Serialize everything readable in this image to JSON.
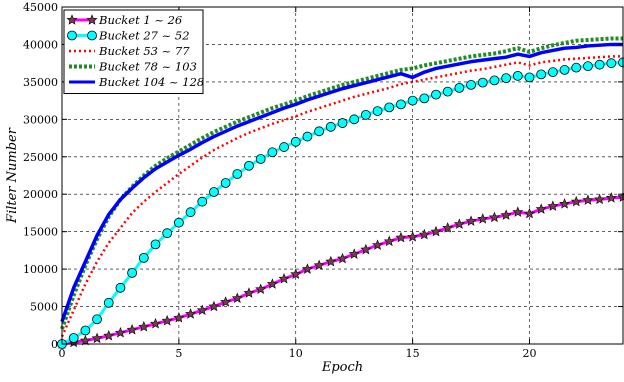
{
  "chart_data": {
    "type": "line",
    "title": "",
    "xlabel": "Epoch",
    "ylabel": "Filter Number",
    "xlim": [
      0,
      24
    ],
    "ylim": [
      0,
      45000
    ],
    "xticks": [
      0,
      5,
      10,
      15,
      20
    ],
    "xtick_labels": [
      "0",
      "5",
      "10",
      "15",
      "20"
    ],
    "yticks": [
      0,
      5000,
      10000,
      15000,
      20000,
      25000,
      30000,
      35000,
      40000,
      45000
    ],
    "ytick_labels": [
      "0",
      "5000",
      "10000",
      "15000",
      "20000",
      "25000",
      "30000",
      "35000",
      "40000",
      "45000"
    ],
    "grid": true,
    "legend_position": "upper-left",
    "x": [
      0,
      0.5,
      1,
      1.5,
      2,
      2.5,
      3,
      3.5,
      4,
      4.5,
      5,
      5.5,
      6,
      6.5,
      7,
      7.5,
      8,
      8.5,
      9,
      9.5,
      10,
      10.5,
      11,
      11.5,
      12,
      12.5,
      13,
      13.5,
      14,
      14.5,
      15,
      15.5,
      16,
      16.5,
      17,
      17.5,
      18,
      18.5,
      19,
      19.5,
      20,
      20.5,
      21,
      21.5,
      22,
      22.5,
      23,
      23.5,
      24
    ],
    "series": [
      {
        "name": "Bucket 1 ~ 26",
        "color": "#ff00ff",
        "style": "solid",
        "marker": "star",
        "marker_color": "#7a3a55",
        "values": [
          0,
          200,
          450,
          750,
          1100,
          1500,
          1900,
          2300,
          2700,
          3100,
          3500,
          4000,
          4500,
          5000,
          5600,
          6100,
          6800,
          7300,
          8000,
          8700,
          9300,
          10000,
          10500,
          11000,
          11400,
          12000,
          12600,
          13200,
          13700,
          14200,
          14300,
          14600,
          15000,
          15500,
          16000,
          16400,
          16700,
          16900,
          17200,
          17600,
          17400,
          18000,
          18400,
          18700,
          19000,
          19200,
          19300,
          19500,
          19600
        ]
      },
      {
        "name": "Bucket 27 ~ 52",
        "color": "#00ffff",
        "style": "solid",
        "marker": "circle",
        "marker_color": "#33cccc",
        "values": [
          0,
          800,
          1800,
          3300,
          5500,
          7500,
          9500,
          11500,
          13300,
          14800,
          16200,
          17600,
          19000,
          20300,
          21500,
          22700,
          23800,
          24700,
          25600,
          26300,
          27000,
          27700,
          28400,
          29000,
          29500,
          30000,
          30600,
          31100,
          31600,
          32000,
          32500,
          32800,
          33300,
          33700,
          34200,
          34600,
          34900,
          35200,
          35500,
          35800,
          35600,
          36000,
          36300,
          36600,
          36900,
          37100,
          37300,
          37500,
          37600
        ]
      },
      {
        "name": "Bucket 53 ~ 77",
        "color": "#ff0000",
        "style": "dotted",
        "marker": "none",
        "values": [
          1000,
          4500,
          8000,
          11000,
          13500,
          15500,
          17500,
          19000,
          20300,
          21500,
          22700,
          23800,
          24900,
          25900,
          26700,
          27500,
          28200,
          28800,
          29400,
          29900,
          30400,
          31000,
          31500,
          32000,
          32500,
          33000,
          33400,
          33800,
          34200,
          34700,
          35000,
          35300,
          35600,
          35900,
          36200,
          36500,
          36700,
          37000,
          37300,
          37600,
          37200,
          37600,
          37800,
          38000,
          38100,
          38200,
          38300,
          38400,
          38400
        ]
      },
      {
        "name": "Bucket 78 ~ 103",
        "color": "#228b22",
        "style": "dotted",
        "marker": "none",
        "values": [
          2000,
          6500,
          10500,
          14000,
          17000,
          19300,
          21000,
          22500,
          23800,
          24800,
          25700,
          26600,
          27500,
          28300,
          29000,
          29700,
          30300,
          30900,
          31500,
          32000,
          32500,
          33100,
          33600,
          34100,
          34600,
          35000,
          35400,
          35800,
          36200,
          36600,
          36800,
          37200,
          37500,
          37800,
          38100,
          38400,
          38600,
          38800,
          39100,
          39500,
          39000,
          39500,
          39900,
          40200,
          40500,
          40600,
          40700,
          40800,
          40800
        ]
      },
      {
        "name": "Bucket 104 ~ 128",
        "color": "#0000ff",
        "style": "solid",
        "marker": "none",
        "values": [
          3000,
          7500,
          11000,
          14500,
          17300,
          19300,
          20800,
          22200,
          23400,
          24300,
          25200,
          26000,
          26900,
          27700,
          28400,
          29100,
          29700,
          30300,
          30900,
          31500,
          32000,
          32600,
          33100,
          33600,
          34100,
          34500,
          34900,
          35300,
          35700,
          36100,
          35600,
          36300,
          36800,
          37100,
          37400,
          37700,
          37900,
          38100,
          38300,
          38700,
          38400,
          38900,
          39200,
          39500,
          39600,
          39800,
          39900,
          40000,
          40000
        ]
      }
    ]
  }
}
